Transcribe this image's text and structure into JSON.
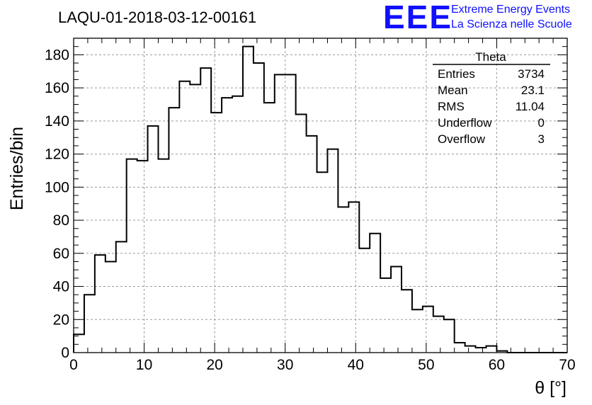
{
  "chart_data": {
    "type": "bar",
    "style": "histogram-step",
    "title": "LAQU-01-2018-03-12-00161",
    "xlabel": "θ [°]",
    "ylabel": "Entries/bin",
    "xlim": [
      0,
      70
    ],
    "ylim": [
      0,
      190
    ],
    "bin_width": 1.5,
    "bin_start": 0,
    "xticks": [
      0,
      10,
      20,
      30,
      40,
      50,
      60,
      70
    ],
    "yticks": [
      0,
      20,
      40,
      60,
      80,
      100,
      120,
      140,
      160,
      180
    ],
    "grid": true,
    "values": [
      11,
      35,
      59,
      55,
      67,
      117,
      116,
      137,
      117,
      148,
      164,
      162,
      172,
      145,
      154,
      155,
      185,
      175,
      151,
      168,
      168,
      144,
      131,
      109,
      123,
      88,
      91,
      63,
      72,
      45,
      52,
      38,
      26,
      28,
      22,
      20,
      6,
      4,
      3,
      4,
      1,
      0,
      0,
      0,
      0,
      0,
      0
    ]
  },
  "stats_box": {
    "title": "Theta",
    "rows": [
      {
        "label": "Entries",
        "value": "3734"
      },
      {
        "label": "Mean",
        "value": "23.1"
      },
      {
        "label": "RMS",
        "value": "11.04"
      },
      {
        "label": "Underflow",
        "value": "0"
      },
      {
        "label": "Overflow",
        "value": "3"
      }
    ]
  },
  "logo": {
    "mark": "EEE",
    "line1": "Extreme Energy Events",
    "line2": "La Scienza nelle Scuole",
    "color": "#1010ff"
  }
}
